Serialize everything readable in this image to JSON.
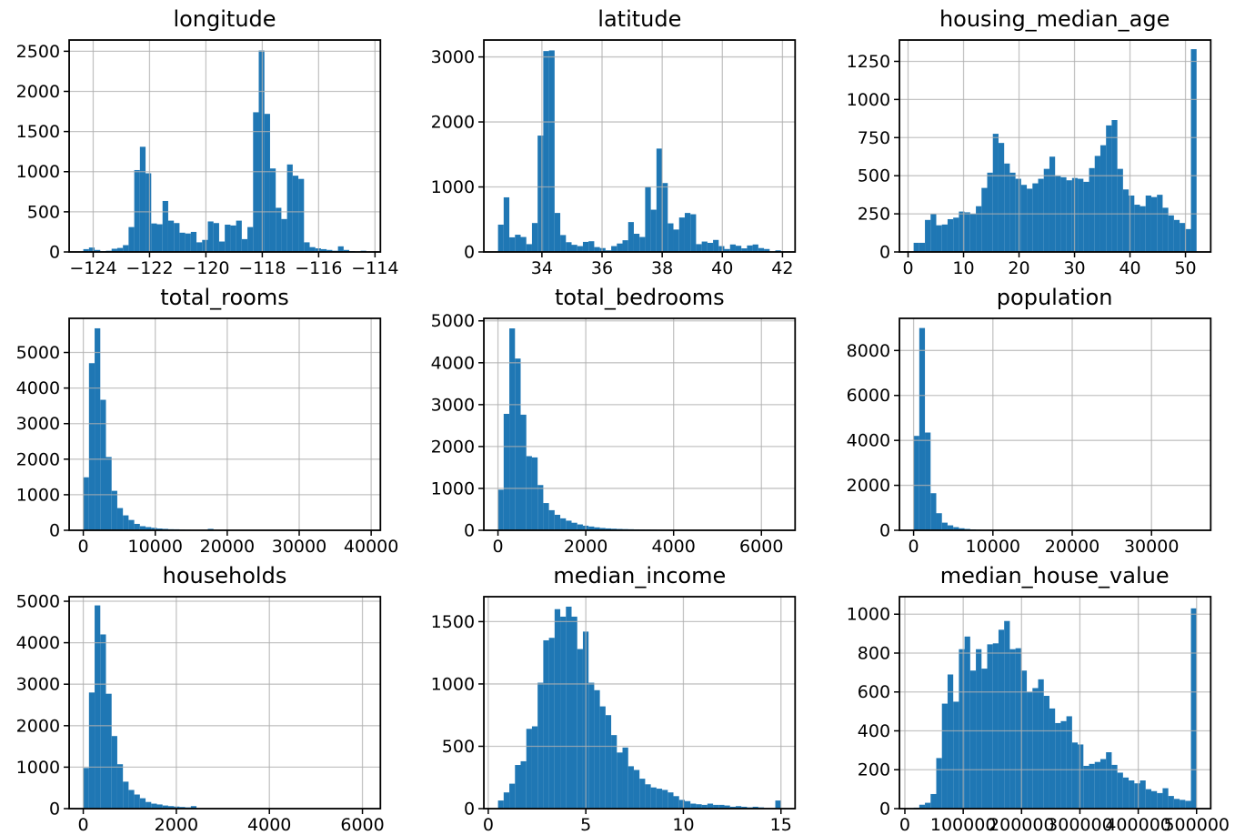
{
  "figure": {
    "background": "#ffffff",
    "bar_color": "#1f77b4",
    "grid_color": "#b0b0b0",
    "spine_color": "#000000",
    "text_color": "#000000"
  },
  "chart_data": [
    {
      "type": "bar",
      "title": "longitude",
      "bins": 50,
      "bin_min": -124.35,
      "bin_max": -114.31,
      "counts": [
        35,
        55,
        25,
        10,
        15,
        40,
        50,
        85,
        310,
        1020,
        1310,
        980,
        355,
        345,
        635,
        390,
        360,
        240,
        230,
        250,
        120,
        150,
        380,
        360,
        130,
        340,
        330,
        390,
        160,
        310,
        1740,
        2510,
        1720,
        1040,
        550,
        410,
        1090,
        950,
        910,
        120,
        60,
        45,
        35,
        25,
        15,
        70,
        25,
        10,
        5,
        15
      ],
      "xlim": [
        -124.852,
        -113.808
      ],
      "ylim": [
        0,
        2640
      ],
      "xticks": [
        -124,
        -122,
        -120,
        -118,
        -116,
        -114
      ],
      "xtick_labels": [
        "−124",
        "−122",
        "−120",
        "−118",
        "−116",
        "−114"
      ],
      "yticks": [
        0,
        500,
        1000,
        1500,
        2000,
        2500
      ],
      "ytick_labels": [
        "0",
        "500",
        "1000",
        "1500",
        "2000",
        "2500"
      ],
      "grid": true
    },
    {
      "type": "bar",
      "title": "latitude",
      "bins": 50,
      "bin_min": 32.54,
      "bin_max": 41.95,
      "counts": [
        420,
        840,
        225,
        265,
        230,
        120,
        445,
        1790,
        3090,
        3100,
        600,
        260,
        150,
        110,
        90,
        155,
        165,
        75,
        60,
        25,
        90,
        130,
        180,
        460,
        280,
        230,
        1000,
        650,
        1590,
        1060,
        440,
        345,
        530,
        600,
        580,
        120,
        160,
        140,
        185,
        90,
        45,
        115,
        95,
        55,
        100,
        115,
        60,
        45,
        5,
        25
      ],
      "xlim": [
        32.0695,
        42.4205
      ],
      "ylim": [
        0,
        3260
      ],
      "xticks": [
        34,
        36,
        38,
        40,
        42
      ],
      "xtick_labels": [
        "34",
        "36",
        "38",
        "40",
        "42"
      ],
      "yticks": [
        0,
        1000,
        2000,
        3000
      ],
      "ytick_labels": [
        "0",
        "1000",
        "2000",
        "3000"
      ],
      "grid": true
    },
    {
      "type": "bar",
      "title": "housing_median_age",
      "bins": 50,
      "bin_min": 1,
      "bin_max": 52,
      "counts": [
        60,
        60,
        210,
        250,
        175,
        180,
        215,
        225,
        265,
        260,
        250,
        300,
        420,
        520,
        775,
        715,
        580,
        520,
        480,
        440,
        415,
        450,
        480,
        545,
        625,
        500,
        490,
        470,
        485,
        480,
        460,
        550,
        630,
        700,
        830,
        865,
        545,
        410,
        370,
        310,
        300,
        370,
        360,
        375,
        290,
        240,
        210,
        190,
        150,
        1330
      ],
      "xlim": [
        -1.55,
        54.55
      ],
      "ylim": [
        0,
        1390
      ],
      "xticks": [
        0,
        10,
        20,
        30,
        40,
        50
      ],
      "xtick_labels": [
        "0",
        "10",
        "20",
        "30",
        "40",
        "50"
      ],
      "yticks": [
        0,
        250,
        500,
        750,
        1000,
        1250
      ],
      "ytick_labels": [
        "0",
        "250",
        "500",
        "750",
        "1000",
        "1250"
      ],
      "grid": true
    },
    {
      "type": "bar",
      "title": "total_rooms",
      "bins": 50,
      "bin_min": 2,
      "bin_max": 39320,
      "counts": [
        1490,
        4700,
        5680,
        3670,
        2060,
        1110,
        625,
        420,
        290,
        180,
        115,
        90,
        70,
        50,
        40,
        30,
        28,
        20,
        15,
        12,
        10,
        8,
        40,
        5,
        4,
        3,
        3,
        2,
        2,
        2,
        1,
        1,
        1,
        1,
        0,
        1,
        0,
        0,
        1,
        0,
        0,
        0,
        0,
        0,
        1,
        0,
        0,
        0,
        0,
        1
      ],
      "xlim": [
        -1963.9,
        41285.9
      ],
      "ylim": [
        0,
        5960
      ],
      "xticks": [
        0,
        10000,
        20000,
        30000,
        40000
      ],
      "xtick_labels": [
        "0",
        "10000",
        "20000",
        "30000",
        "40000"
      ],
      "yticks": [
        0,
        1000,
        2000,
        3000,
        4000,
        5000
      ],
      "ytick_labels": [
        "0",
        "1000",
        "2000",
        "3000",
        "4000",
        "5000"
      ],
      "grid": true
    },
    {
      "type": "bar",
      "title": "total_bedrooms",
      "bins": 50,
      "bin_min": 1,
      "bin_max": 6445,
      "counts": [
        970,
        2780,
        4820,
        4100,
        2760,
        1770,
        1740,
        1080,
        650,
        480,
        370,
        285,
        230,
        180,
        140,
        110,
        90,
        70,
        55,
        45,
        38,
        32,
        28,
        25,
        22,
        20,
        18,
        15,
        12,
        10,
        9,
        8,
        7,
        6,
        5,
        5,
        4,
        4,
        3,
        3,
        2,
        2,
        2,
        1,
        1,
        1,
        1,
        1,
        0,
        1
      ],
      "xlim": [
        -321.2,
        6767.2
      ],
      "ylim": [
        0,
        5060
      ],
      "xticks": [
        0,
        2000,
        4000,
        6000
      ],
      "xtick_labels": [
        "0",
        "2000",
        "4000",
        "6000"
      ],
      "yticks": [
        0,
        1000,
        2000,
        3000,
        4000,
        5000
      ],
      "ytick_labels": [
        "0",
        "1000",
        "2000",
        "3000",
        "4000",
        "5000"
      ],
      "grid": true
    },
    {
      "type": "bar",
      "title": "population",
      "bins": 50,
      "bin_min": 3,
      "bin_max": 35682,
      "counts": [
        4200,
        9000,
        4350,
        1650,
        760,
        340,
        220,
        140,
        90,
        60,
        40,
        25,
        15,
        10,
        8,
        6,
        5,
        4,
        3,
        2,
        2,
        1,
        1,
        1,
        1,
        0,
        1,
        0,
        0,
        1,
        0,
        0,
        0,
        0,
        0,
        0,
        0,
        0,
        0,
        0,
        0,
        0,
        0,
        0,
        0,
        0,
        0,
        0,
        0,
        1
      ],
      "xlim": [
        -1780.95,
        37465.95
      ],
      "ylim": [
        0,
        9430
      ],
      "xticks": [
        0,
        10000,
        20000,
        30000
      ],
      "xtick_labels": [
        "0",
        "10000",
        "20000",
        "30000"
      ],
      "yticks": [
        0,
        2000,
        4000,
        6000,
        8000
      ],
      "ytick_labels": [
        "0",
        "2000",
        "4000",
        "6000",
        "8000"
      ],
      "grid": true
    },
    {
      "type": "bar",
      "title": "households",
      "bins": 50,
      "bin_min": 1,
      "bin_max": 6082,
      "counts": [
        980,
        2800,
        4900,
        4200,
        2770,
        1750,
        1070,
        650,
        450,
        340,
        250,
        160,
        120,
        100,
        75,
        60,
        50,
        40,
        30,
        60,
        5,
        4,
        3,
        2,
        2,
        1,
        1,
        1,
        1,
        0,
        1,
        0,
        0,
        0,
        0,
        0,
        0,
        0,
        0,
        0,
        0,
        0,
        0,
        0,
        0,
        0,
        0,
        0,
        0,
        1
      ],
      "xlim": [
        -303.05,
        6386.05
      ],
      "ylim": [
        0,
        5110
      ],
      "xticks": [
        0,
        2000,
        4000,
        6000
      ],
      "xtick_labels": [
        "0",
        "2000",
        "4000",
        "6000"
      ],
      "yticks": [
        0,
        1000,
        2000,
        3000,
        4000,
        5000
      ],
      "ytick_labels": [
        "0",
        "1000",
        "2000",
        "3000",
        "4000",
        "5000"
      ],
      "grid": true
    },
    {
      "type": "bar",
      "title": "median_income",
      "bins": 50,
      "bin_min": 0.4999,
      "bin_max": 15.0001,
      "counts": [
        65,
        130,
        200,
        350,
        380,
        640,
        660,
        1010,
        1350,
        1370,
        1600,
        1540,
        1620,
        1540,
        1280,
        1420,
        1010,
        950,
        820,
        750,
        590,
        450,
        490,
        340,
        310,
        240,
        195,
        170,
        160,
        150,
        130,
        100,
        70,
        60,
        40,
        35,
        30,
        40,
        30,
        30,
        25,
        15,
        20,
        15,
        10,
        15,
        10,
        5,
        5,
        65
      ],
      "xlim": [
        -0.2251,
        15.7251
      ],
      "ylim": [
        0,
        1700
      ],
      "xticks": [
        0,
        5,
        10,
        15
      ],
      "xtick_labels": [
        "0",
        "5",
        "10",
        "15"
      ],
      "yticks": [
        0,
        500,
        1000,
        1500
      ],
      "ytick_labels": [
        "0",
        "500",
        "1000",
        "1500"
      ],
      "grid": true
    },
    {
      "type": "bar",
      "title": "median_house_value",
      "bins": 50,
      "bin_min": 14999,
      "bin_max": 500001,
      "counts": [
        5,
        20,
        30,
        75,
        260,
        540,
        690,
        550,
        820,
        885,
        710,
        820,
        720,
        845,
        850,
        920,
        965,
        820,
        825,
        710,
        600,
        620,
        665,
        580,
        515,
        440,
        450,
        475,
        340,
        330,
        220,
        230,
        240,
        255,
        290,
        225,
        185,
        160,
        145,
        130,
        145,
        100,
        90,
        80,
        105,
        65,
        50,
        45,
        40,
        1030
      ],
      "xlim": [
        -9251,
        524251
      ],
      "ylim": [
        0,
        1090
      ],
      "xticks": [
        0,
        100000,
        200000,
        300000,
        400000,
        500000
      ],
      "xtick_labels": [
        "0",
        "100000",
        "200000",
        "300000",
        "400000",
        "500000"
      ],
      "yticks": [
        0,
        200,
        400,
        600,
        800,
        1000
      ],
      "ytick_labels": [
        "0",
        "200",
        "400",
        "600",
        "800",
        "1000"
      ],
      "grid": true
    }
  ]
}
